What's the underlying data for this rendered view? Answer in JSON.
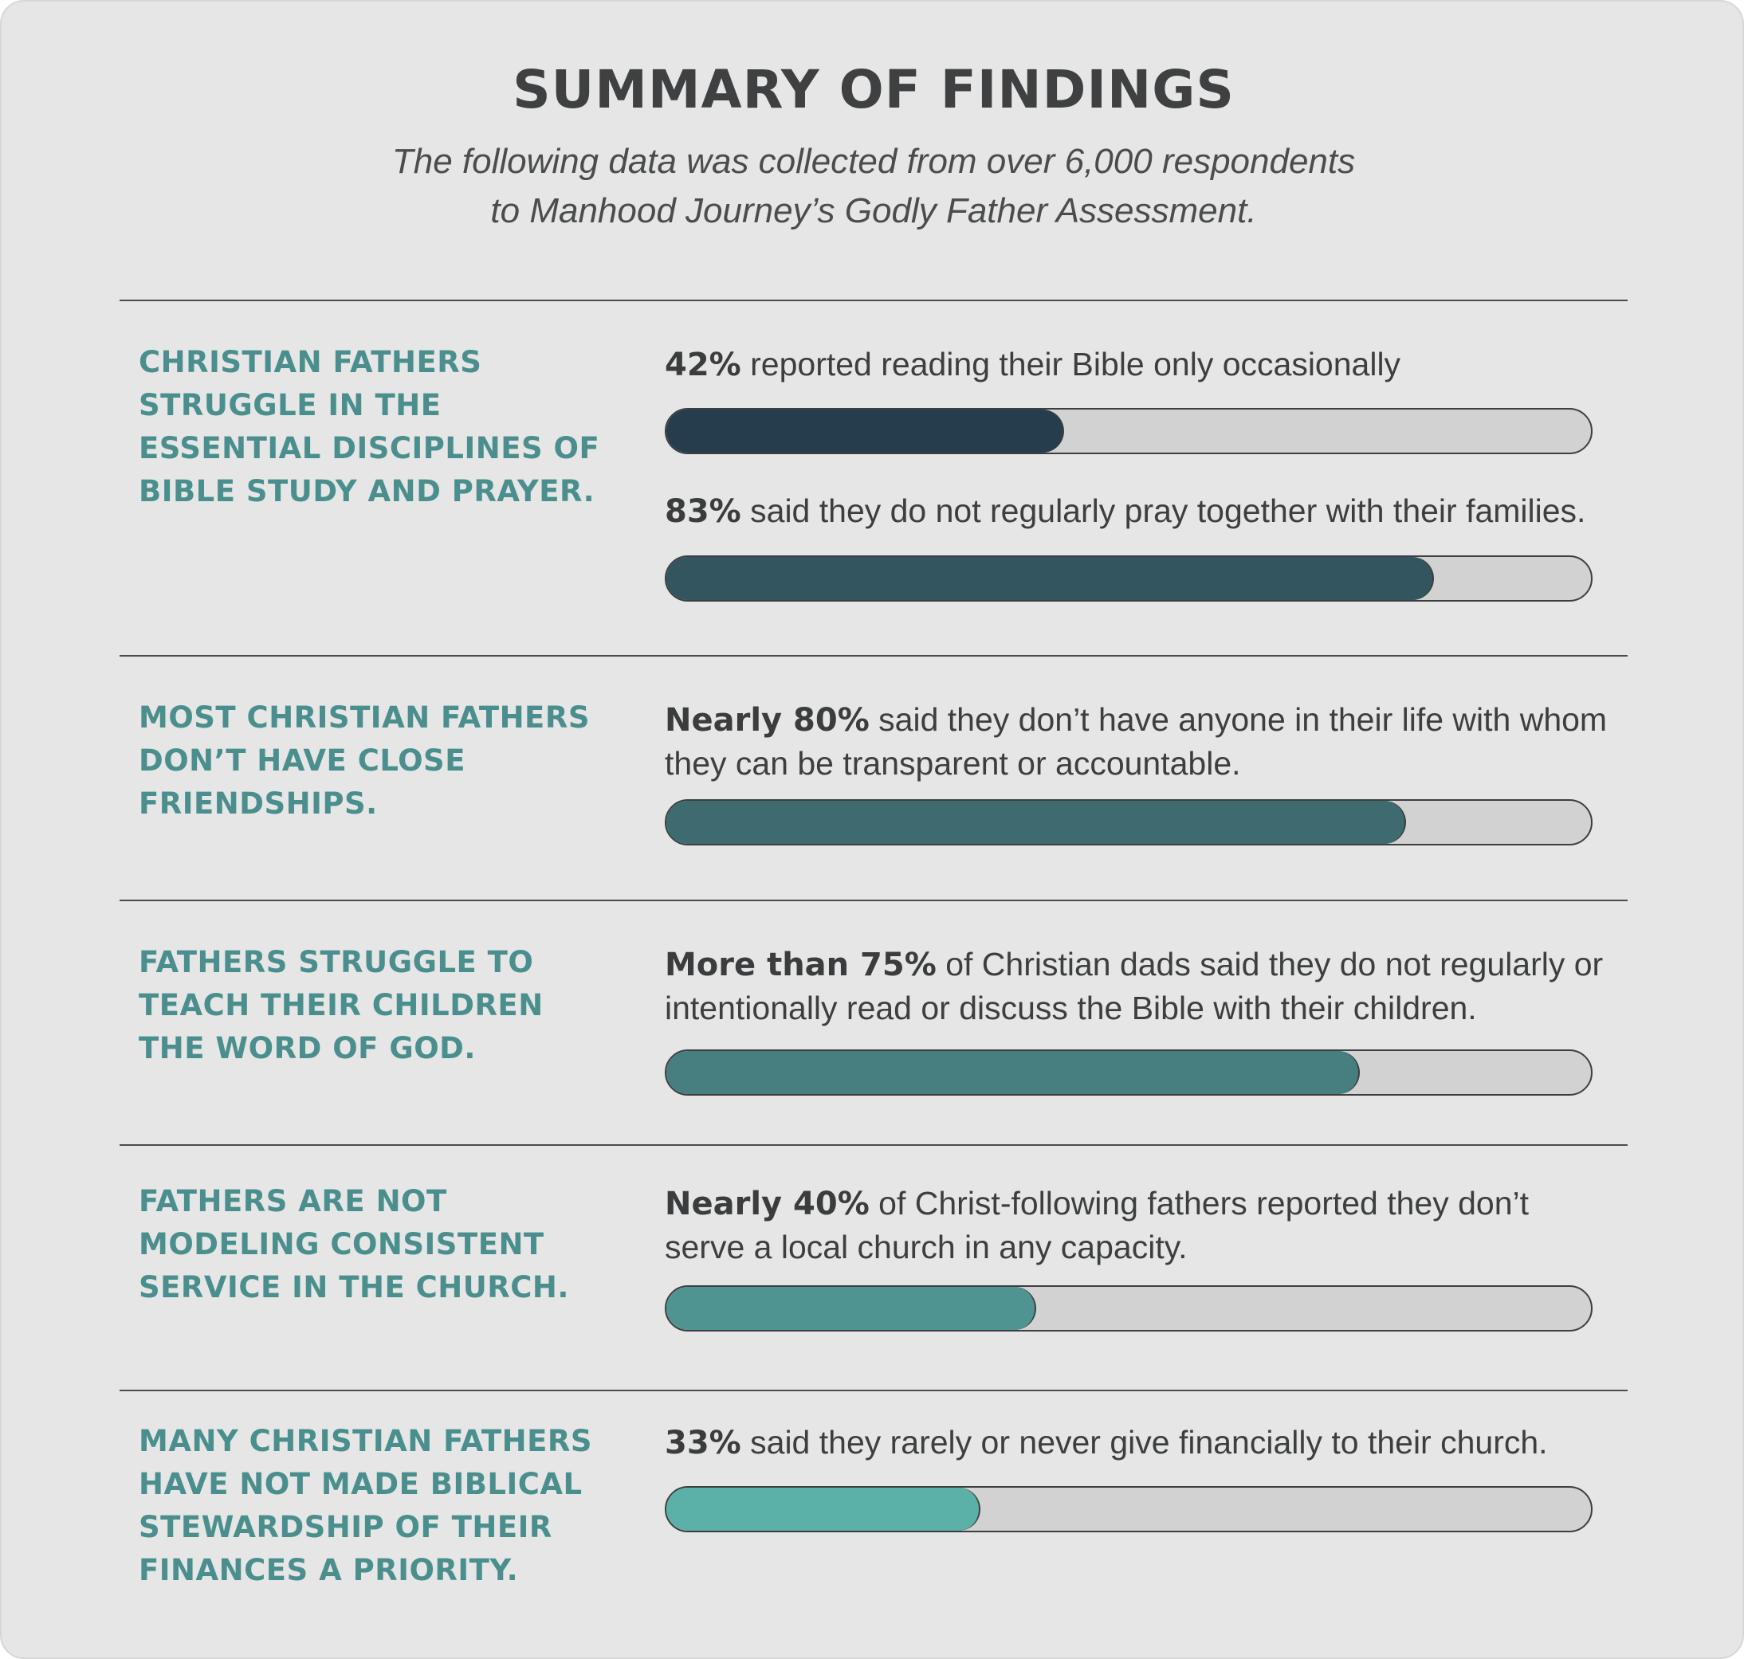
{
  "header": {
    "title": "SUMMARY OF FINDINGS",
    "subtitle_line1": "The following data was collected from over 6,000 respondents",
    "subtitle_line2": "to Manhood Journey’s Godly Father Assessment."
  },
  "sections": [
    {
      "label_lines": [
        "CHRISTIAN FATHERS",
        "STRUGGLE IN THE",
        "ESSENTIAL DISCIPLINES OF",
        "BIBLE STUDY AND PRAYER."
      ],
      "stats": [
        {
          "bold": "42%",
          "text": " reported reading their Bible only occasionally"
        },
        {
          "bold": "83%",
          "text": " said they do not regularly pray together with their families."
        }
      ]
    },
    {
      "label_lines": [
        "MOST CHRISTIAN FATHERS",
        "DON’T HAVE CLOSE",
        "FRIENDSHIPS."
      ],
      "stats": [
        {
          "bold": "Nearly 80%",
          "text": " said they don’t have anyone in their life with whom",
          "text2": "they can be transparent or accountable."
        }
      ]
    },
    {
      "label_lines": [
        "FATHERS STRUGGLE TO",
        "TEACH THEIR CHILDREN",
        "THE WORD OF GOD."
      ],
      "stats": [
        {
          "bold": "More than 75%",
          "text": " of Christian dads said they do not regularly or",
          "text2": "intentionally read or discuss the Bible with their children."
        }
      ]
    },
    {
      "label_lines": [
        "FATHERS ARE NOT",
        "MODELING CONSISTENT",
        "SERVICE IN THE CHURCH."
      ],
      "stats": [
        {
          "bold": "Nearly 40%",
          "text": " of Christ-following fathers reported they don’t",
          "text2": "serve a local church in any capacity."
        }
      ]
    },
    {
      "label_lines": [
        "MANY CHRISTIAN FATHERS",
        "HAVE NOT MADE BIBLICAL",
        "STEWARDSHIP OF THEIR",
        "FINANCES A PRIORITY."
      ],
      "stats": [
        {
          "bold": "33%",
          "text": " said they rarely or never give financially to their church."
        }
      ]
    }
  ],
  "chart_data": {
    "type": "bar",
    "orientation": "horizontal",
    "categories": [
      "Bible reading only occasionally",
      "Do not regularly pray with families",
      "No one to be transparent or accountable with",
      "Do not regularly read or discuss the Bible with children",
      "Do not serve a local church",
      "Rarely or never give financially"
    ],
    "values": [
      42,
      83,
      80,
      75,
      40,
      33
    ],
    "bar_fractions": [
      0.43,
      0.83,
      0.8,
      0.75,
      0.4,
      0.34
    ],
    "xlim": [
      0,
      100
    ],
    "colors": [
      "#263d4d",
      "#33555f",
      "#3e6b70",
      "#477f80",
      "#509491",
      "#5bb0a8"
    ],
    "track_color": "#d2d2d2"
  }
}
